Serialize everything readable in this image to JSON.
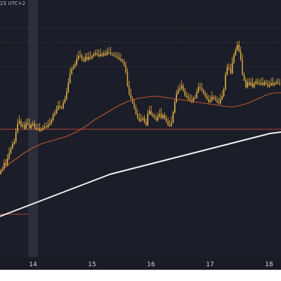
{
  "header": {
    "text": "23 UTC+2"
  },
  "colors": {
    "background": "#1b1d29",
    "axis_band": "#191b25",
    "candle_up": "#f2c04a",
    "candle_down": "#e0a83a",
    "wick": "#e4b23f",
    "ma_short": "#c0582b",
    "ma_long": "#f2f2f2",
    "support_line": "#b5473b",
    "level_dotted": "#5a4b33",
    "highlight_column": "#3a3d4a"
  },
  "chart_data": {
    "type": "line",
    "title": "",
    "xlabel": "",
    "ylabel": "",
    "x_ticks": [
      "14",
      "15",
      "16",
      "17",
      "18"
    ],
    "x_range": [
      13.33,
      18.1
    ],
    "y_range_note": "no price axis visible",
    "grid": false,
    "series": [
      {
        "style": "candlestick",
        "close": [
          243,
          241,
          232,
          235,
          226,
          218,
          211,
          205,
          202,
          188,
          176,
          172,
          180,
          178,
          183,
          175,
          177,
          182,
          178,
          176,
          182,
          184,
          183,
          186,
          184,
          182,
          180,
          181,
          178,
          176,
          171,
          164,
          161,
          156,
          151,
          153,
          154,
          146,
          141,
          131,
          118,
          105,
          98,
          95,
          92,
          84,
          80,
          79,
          85,
          87,
          81,
          85,
          81,
          83,
          80,
          78,
          76,
          78,
          80,
          77,
          79,
          76,
          78,
          74,
          75,
          77,
          78,
          79,
          80,
          82,
          84,
          86,
          88,
          93,
          103,
          122,
          134,
          140,
          146,
          154,
          162,
          168,
          172,
          170,
          168,
          174,
          178,
          162,
          158,
          163,
          165,
          168,
          171,
          166,
          162,
          168,
          164,
          169,
          173,
          178,
          179,
          174,
          160,
          145,
          133,
          128,
          126,
          122,
          129,
          136,
          138,
          141,
          143,
          145,
          140,
          139,
          131,
          124,
          126,
          129,
          133,
          137,
          141,
          145,
          143,
          138,
          140,
          142,
          145,
          147,
          141,
          137,
          127,
          106,
          96,
          98,
          104,
          89,
          78,
          71,
          64,
          73,
          85,
          106,
          114,
          124,
          117,
          121,
          118,
          124,
          119,
          116,
          119,
          120,
          118,
          121,
          117,
          119,
          123,
          121,
          118,
          121,
          119,
          117,
          118,
          120
        ]
      },
      {
        "name": "",
        "style": "moving-average-short",
        "values": [
          244,
          239,
          233,
          228,
          223,
          218,
          214,
          210,
          207,
          204,
          202,
          200,
          198,
          196,
          194,
          191,
          188,
          184,
          180,
          175,
          170,
          166,
          162,
          158,
          154,
          150,
          147,
          144,
          142,
          140,
          139,
          138,
          137,
          137,
          138,
          139,
          140,
          141,
          142,
          143,
          144,
          145,
          146,
          147,
          148,
          149,
          150,
          151,
          152,
          152,
          151,
          149,
          147,
          144,
          141,
          138,
          135,
          133,
          132,
          132
        ]
      },
      {
        "name": "",
        "style": "moving-average-long",
        "values": [
          308,
          305,
          302,
          299,
          296,
          293,
          290,
          287,
          284,
          281,
          278,
          275,
          272,
          269,
          266,
          263,
          260,
          257,
          254,
          251,
          248,
          246,
          244,
          242,
          240,
          238,
          236,
          234,
          232,
          230,
          228,
          226,
          224,
          222,
          220,
          218,
          216,
          214,
          212,
          210,
          208,
          206,
          204,
          202,
          200,
          198,
          196,
          194,
          192,
          190,
          189,
          188
        ]
      }
    ],
    "horizontal_levels": [
      184,
      305
    ],
    "dotted_levels": [
      95,
      60,
      40
    ]
  }
}
